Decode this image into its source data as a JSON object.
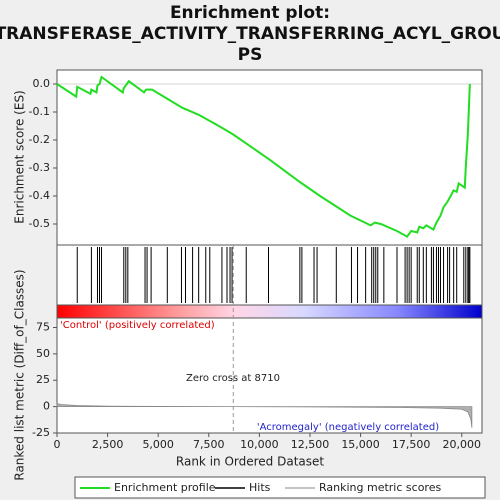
{
  "chart_data": {
    "type": "line",
    "title": [
      "Enrichment plot:",
      "TRANSFERASE_ACTIVITY_TRANSFERRING_ACYL_GROU",
      "PS"
    ],
    "x_label": "Rank in Ordered Dataset",
    "y_label": "Enrichment score (ES)",
    "y2_label": "Ranked list metric (Diff_of_Classes)",
    "annotations": [
      "'Control' (positively correlated)",
      "Zero cross at 8710",
      "'Acromegaly' (negatively correlated)"
    ],
    "zero_cross": 8710,
    "xlim": [
      0,
      21000
    ],
    "xticks": [
      0,
      {
        "value": 2500,
        "label": "2,500"
      },
      {
        "value": 5000,
        "label": "5,000"
      },
      {
        "value": 7500,
        "label": "7,500"
      },
      {
        "value": 10000,
        "label": "10,000"
      },
      {
        "value": 12500,
        "label": "12,500"
      },
      {
        "value": 15000,
        "label": "15,000"
      },
      {
        "value": 17500,
        "label": "17,500"
      },
      {
        "value": 20000,
        "label": "20,000"
      }
    ],
    "ylim": [
      -0.575,
      0.05
    ],
    "yticks": [
      {
        "value": 0,
        "label": "0.0"
      },
      -0.1,
      -0.2,
      -0.3,
      -0.4,
      -0.5
    ],
    "y2lim": [
      -25,
      84
    ],
    "y2ticks": [
      -25,
      0,
      25,
      50,
      75
    ],
    "series": [
      {
        "name": "Enrichment profile",
        "color": "#22dd22",
        "x": [
          0,
          950,
          1000,
          1650,
          1700,
          1950,
          2000,
          2100,
          2200,
          3250,
          3300,
          3450,
          3550,
          4300,
          4400,
          4700,
          5500,
          6200,
          7000,
          8000,
          8700,
          10500,
          12000,
          13000,
          14500,
          15500,
          15700,
          16000,
          16800,
          17300,
          17500,
          17800,
          17900,
          18100,
          18250,
          18600,
          18750,
          18950,
          19100,
          19300,
          19600,
          19750,
          19850,
          20150,
          20200,
          20300,
          20400
        ],
        "values": [
          0,
          -0.045,
          -0.01,
          -0.035,
          -0.02,
          -0.03,
          -0.005,
          0.0,
          0.025,
          -0.03,
          -0.015,
          0.0,
          0.01,
          -0.03,
          -0.02,
          -0.02,
          -0.055,
          -0.085,
          -0.11,
          -0.15,
          -0.18,
          -0.27,
          -0.35,
          -0.4,
          -0.47,
          -0.505,
          -0.495,
          -0.5,
          -0.525,
          -0.545,
          -0.525,
          -0.53,
          -0.51,
          -0.515,
          -0.505,
          -0.52,
          -0.495,
          -0.47,
          -0.44,
          -0.42,
          -0.38,
          -0.385,
          -0.355,
          -0.37,
          -0.295,
          -0.18,
          0.0
        ]
      },
      {
        "name": "Hits",
        "color": "#000000",
        "x": [
          1000,
          1700,
          2000,
          2100,
          2200,
          3300,
          3400,
          3500,
          4350,
          4450,
          4650,
          5450,
          6150,
          6350,
          6700,
          7000,
          7350,
          7550,
          8150,
          8400,
          8550,
          8650,
          9350,
          10450,
          12000,
          12100,
          12700,
          12850,
          13800,
          14550,
          14850,
          15250,
          15550,
          15650,
          15750,
          15850,
          16150,
          16800,
          17200,
          17300,
          17400,
          17500,
          17800,
          17900,
          18100,
          18250,
          18500,
          18600,
          18750,
          18850,
          18950,
          19100,
          19300,
          19400,
          19600,
          19750,
          20100,
          20200,
          20300,
          20350,
          20400
        ]
      },
      {
        "name": "Ranking metric scores",
        "color": "#b0b0b0",
        "axis": "y2",
        "x": [
          0,
          200,
          1000,
          2500,
          5000,
          8710,
          12000,
          17000,
          19000,
          20000,
          20300,
          20450,
          20500
        ],
        "values": [
          3,
          2,
          1,
          0.5,
          0.2,
          0,
          -0.2,
          -0.8,
          -1.5,
          -2.5,
          -5,
          -12,
          -20
        ]
      }
    ]
  }
}
